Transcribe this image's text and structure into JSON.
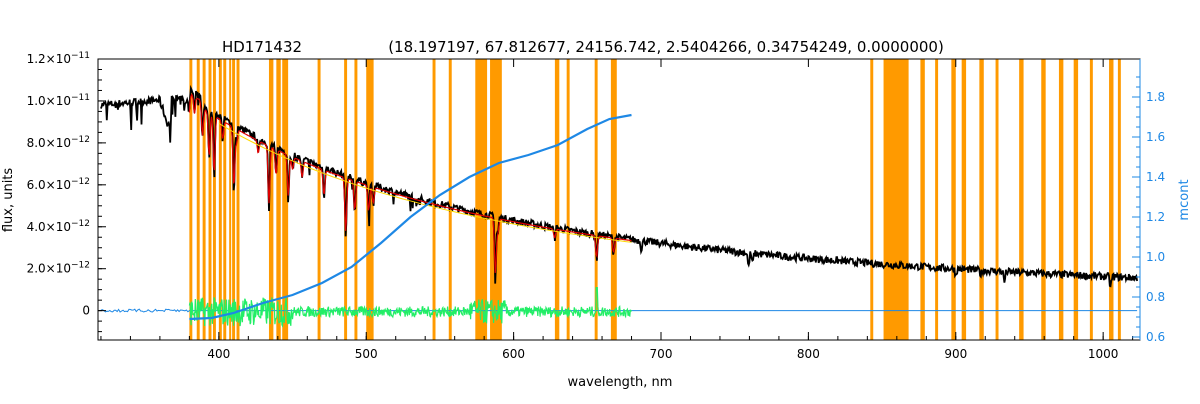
{
  "chart_data": {
    "type": "line",
    "title_star": "HD171432",
    "title_params": "(18.197197, 67.812677, 24156.742, 2.5404266, 0.34754249, 0.0000000)",
    "xlabel": "wavelength, nm",
    "ylabel_left": "flux, units",
    "ylabel_right": "mcont",
    "xlim": [
      318,
      1025
    ],
    "ylim_left": [
      -1.4e-12,
      1.2e-11
    ],
    "ylim_right": [
      0.585,
      1.99
    ],
    "x_ticks": [
      "400",
      "500",
      "600",
      "700",
      "800",
      "900",
      "1000"
    ],
    "x_tick_values": [
      400,
      500,
      600,
      700,
      800,
      900,
      1000
    ],
    "y_ticks_left": [
      {
        "mant": "1.2×10",
        "exp": "−11",
        "value": 1.2e-11
      },
      {
        "mant": "1.0×10",
        "exp": "−11",
        "value": 1e-11
      },
      {
        "mant": "8.0×10",
        "exp": "−12",
        "value": 8e-12
      },
      {
        "mant": "6.0×10",
        "exp": "−12",
        "value": 6e-12
      },
      {
        "mant": "4.0×10",
        "exp": "−12",
        "value": 4e-12
      },
      {
        "mant": "2.0×10",
        "exp": "−12",
        "value": 2e-12
      },
      {
        "mant": "0",
        "exp": "",
        "value": 0
      }
    ],
    "y_ticks_right": [
      "0.6",
      "0.8",
      "1.0",
      "1.2",
      "1.4",
      "1.6",
      "1.8"
    ],
    "y_tick_values_right": [
      0.6,
      0.8,
      1.0,
      1.2,
      1.4,
      1.6,
      1.8
    ],
    "masked_bands": [
      [
        380,
        382
      ],
      [
        385,
        387
      ],
      [
        389,
        391
      ],
      [
        393,
        395
      ],
      [
        396,
        398
      ],
      [
        400,
        402
      ],
      [
        403,
        405
      ],
      [
        407,
        408
      ],
      [
        409,
        411
      ],
      [
        412,
        414
      ],
      [
        434,
        437
      ],
      [
        439,
        442
      ],
      [
        443,
        447
      ],
      [
        467,
        469
      ],
      [
        485,
        487
      ],
      [
        492,
        494
      ],
      [
        500,
        505
      ],
      [
        545,
        547
      ],
      [
        556,
        558
      ],
      [
        574,
        582
      ],
      [
        584,
        592
      ],
      [
        628,
        631
      ],
      [
        636,
        638
      ],
      [
        655,
        657
      ],
      [
        666,
        670
      ],
      [
        842,
        844
      ],
      [
        851,
        868
      ],
      [
        876,
        879
      ],
      [
        886,
        888
      ],
      [
        897,
        900
      ],
      [
        904,
        907
      ],
      [
        916,
        919
      ],
      [
        927,
        929
      ],
      [
        943,
        946
      ],
      [
        958,
        961
      ],
      [
        970,
        973
      ],
      [
        980,
        983
      ],
      [
        991,
        993
      ],
      [
        1004,
        1007
      ],
      [
        1010,
        1012
      ]
    ],
    "absorption_lines": [
      {
        "x": 377.1,
        "depth": 3.5e-13
      },
      {
        "x": 379.8,
        "depth": 7e-13
      },
      {
        "x": 383.5,
        "depth": 1.1e-12
      },
      {
        "x": 388.9,
        "depth": 1.9e-12
      },
      {
        "x": 393.4,
        "depth": 2.4e-12
      },
      {
        "x": 396.8,
        "depth": 3.2e-12
      },
      {
        "x": 402.6,
        "depth": 1e-12
      },
      {
        "x": 410.2,
        "depth": 3.3e-12
      },
      {
        "x": 412.0,
        "depth": 8e-13
      },
      {
        "x": 426.7,
        "depth": 7e-13
      },
      {
        "x": 434.0,
        "depth": 3.2e-12
      },
      {
        "x": 438.8,
        "depth": 1.4e-12
      },
      {
        "x": 447.1,
        "depth": 2.3e-12
      },
      {
        "x": 450.0,
        "depth": 7e-13
      },
      {
        "x": 456.5,
        "depth": 9e-13
      },
      {
        "x": 471.3,
        "depth": 1.4e-12
      },
      {
        "x": 486.1,
        "depth": 3e-12
      },
      {
        "x": 492.2,
        "depth": 1.6e-12
      },
      {
        "x": 501.6,
        "depth": 1.4e-12
      },
      {
        "x": 504.8,
        "depth": 9e-13
      },
      {
        "x": 587.6,
        "depth": 3.1e-12
      },
      {
        "x": 589.3,
        "depth": 8e-13
      },
      {
        "x": 627.8,
        "depth": 5e-13
      },
      {
        "x": 656.3,
        "depth": 1.2e-12
      },
      {
        "x": 667.8,
        "depth": 8e-13
      },
      {
        "x": 686.7,
        "depth": 4e-13
      },
      {
        "x": 759.4,
        "depth": 7e-13
      },
      {
        "x": 762.1,
        "depth": 5e-13
      },
      {
        "x": 900.0,
        "depth": 3e-13
      },
      {
        "x": 917.0,
        "depth": 2e-13
      },
      {
        "x": 933.0,
        "depth": 5e-13
      },
      {
        "x": 1005.0,
        "depth": 5e-13
      }
    ],
    "mcont_curve": [
      [
        380,
        0.69
      ],
      [
        395,
        0.695
      ],
      [
        410,
        0.72
      ],
      [
        430,
        0.77
      ],
      [
        450,
        0.81
      ],
      [
        470,
        0.87
      ],
      [
        490,
        0.95
      ],
      [
        510,
        1.07
      ],
      [
        530,
        1.2
      ],
      [
        550,
        1.31
      ],
      [
        570,
        1.4
      ],
      [
        590,
        1.47
      ],
      [
        610,
        1.51
      ],
      [
        630,
        1.56
      ],
      [
        650,
        1.64
      ],
      [
        665,
        1.69
      ],
      [
        680,
        1.71
      ]
    ],
    "colors": {
      "mask": "#ff9a00",
      "observed": "#000000",
      "model": "#e00000",
      "residual": "#22ee66",
      "mcont": "#1e88e5",
      "axis": "#000000",
      "right_axis": "#1e88e5",
      "continuum_hint": "#ffd800"
    }
  }
}
